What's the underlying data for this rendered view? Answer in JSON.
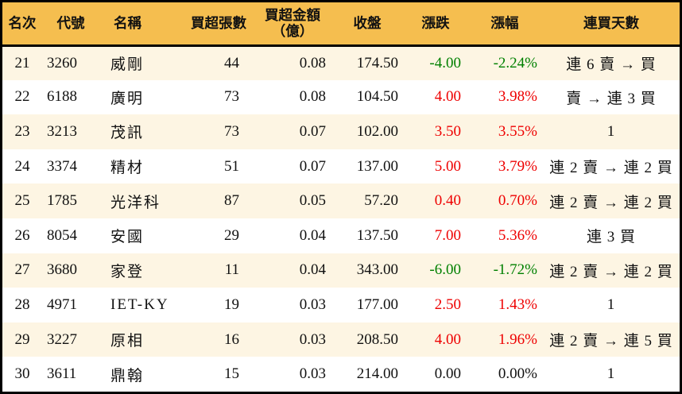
{
  "colors": {
    "header_bg": "#F5BE4F",
    "row_alt_bg": "#FDF5E3",
    "row_bg": "#FFFFFF",
    "border": "#000000",
    "text": "#111111",
    "up": "#EE0000",
    "down": "#008000",
    "flat": "#111111"
  },
  "chart_data": {
    "type": "table",
    "columns": [
      {
        "key": "rank",
        "label": "名次"
      },
      {
        "key": "code",
        "label": "代號"
      },
      {
        "key": "name",
        "label": "名稱"
      },
      {
        "key": "shares",
        "label": "買超張數"
      },
      {
        "key": "amount",
        "label": "買超金額\n（億）"
      },
      {
        "key": "close",
        "label": "收盤"
      },
      {
        "key": "change",
        "label": "漲跌"
      },
      {
        "key": "change_pct",
        "label": "漲幅"
      },
      {
        "key": "streak",
        "label": "連買天數"
      }
    ],
    "rows": [
      {
        "rank": "21",
        "code": "3260",
        "name": "威剛",
        "shares": "44",
        "amount": "0.08",
        "close": "174.50",
        "change": "-4.00",
        "change_pct": "-2.24%",
        "streak": "連 6 賣 → 買"
      },
      {
        "rank": "22",
        "code": "6188",
        "name": "廣明",
        "shares": "73",
        "amount": "0.08",
        "close": "104.50",
        "change": "4.00",
        "change_pct": "3.98%",
        "streak": "賣 → 連 3 買"
      },
      {
        "rank": "23",
        "code": "3213",
        "name": "茂訊",
        "shares": "73",
        "amount": "0.07",
        "close": "102.00",
        "change": "3.50",
        "change_pct": "3.55%",
        "streak": "1"
      },
      {
        "rank": "24",
        "code": "3374",
        "name": "精材",
        "shares": "51",
        "amount": "0.07",
        "close": "137.00",
        "change": "5.00",
        "change_pct": "3.79%",
        "streak": "連 2 賣 → 連 2 買"
      },
      {
        "rank": "25",
        "code": "1785",
        "name": "光洋科",
        "shares": "87",
        "amount": "0.05",
        "close": "57.20",
        "change": "0.40",
        "change_pct": "0.70%",
        "streak": "連 2 賣 → 連 2 買"
      },
      {
        "rank": "26",
        "code": "8054",
        "name": "安國",
        "shares": "29",
        "amount": "0.04",
        "close": "137.50",
        "change": "7.00",
        "change_pct": "5.36%",
        "streak": "連 3 買"
      },
      {
        "rank": "27",
        "code": "3680",
        "name": "家登",
        "shares": "11",
        "amount": "0.04",
        "close": "343.00",
        "change": "-6.00",
        "change_pct": "-1.72%",
        "streak": "連 2 賣 → 連 2 買"
      },
      {
        "rank": "28",
        "code": "4971",
        "name": "IET-KY",
        "shares": "19",
        "amount": "0.03",
        "close": "177.00",
        "change": "2.50",
        "change_pct": "1.43%",
        "streak": "1"
      },
      {
        "rank": "29",
        "code": "3227",
        "name": "原相",
        "shares": "16",
        "amount": "0.03",
        "close": "208.50",
        "change": "4.00",
        "change_pct": "1.96%",
        "streak": "連 2 賣 → 連 5 買"
      },
      {
        "rank": "30",
        "code": "3611",
        "name": "鼎翰",
        "shares": "15",
        "amount": "0.03",
        "close": "214.00",
        "change": "0.00",
        "change_pct": "0.00%",
        "streak": "1"
      }
    ]
  }
}
